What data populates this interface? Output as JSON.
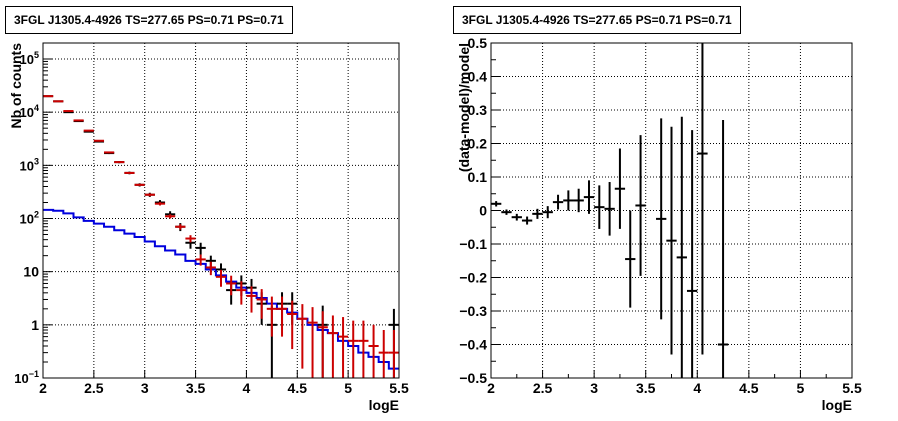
{
  "colors": {
    "data": "#000000",
    "model_counts": "#cc0000",
    "model_bkg": "#0000dd",
    "grid": "#000000"
  },
  "chart_data": [
    {
      "type": "scatter",
      "title": "3FGL J1305.4-4926 TS=277.65 PS=0.71 PS=0.71",
      "xlabel": "logE",
      "ylabel": "Nb of counts",
      "xlim": [
        2,
        5.5
      ],
      "ylim": [
        0.1,
        200000
      ],
      "yscale": "log",
      "grid": true,
      "x_ticks": [
        "2",
        "2.5",
        "3",
        "3.5",
        "4",
        "4.5",
        "5",
        "5.5"
      ],
      "y_ticks": [
        "10^-1",
        "1",
        "10",
        "10^2",
        "10^3",
        "10^4",
        "10^5"
      ],
      "bin_width": 0.1,
      "series": [
        {
          "kind": "data",
          "x": [
            2.05,
            2.15,
            2.25,
            2.35,
            2.45,
            2.55,
            2.65,
            2.75,
            2.85,
            2.95,
            3.05,
            3.15,
            3.25,
            3.35,
            3.45,
            3.55,
            3.65,
            3.75,
            3.85,
            3.95,
            4.05,
            4.15,
            4.25,
            4.35,
            4.45,
            4.55,
            4.65,
            4.75,
            4.85,
            4.95,
            5.05,
            5.15,
            5.25,
            5.35,
            5.45
          ],
          "y": [
            20000,
            16000,
            10000,
            6800,
            4300,
            2800,
            1700,
            1150,
            720,
            430,
            280,
            200,
            120,
            70,
            35,
            28,
            16,
            11,
            4.5,
            6,
            5,
            2.5,
            1,
            2.5,
            2.5,
            0.05,
            0.05,
            1,
            0.05,
            0.05,
            0.05,
            0.05,
            0.05,
            0.05,
            1
          ],
          "y_err_low": [
            300,
            250,
            200,
            150,
            120,
            90,
            70,
            55,
            42,
            30,
            25,
            22,
            17,
            12,
            8,
            7,
            4,
            3.3,
            2.1,
            2.5,
            2.3,
            1.5,
            0.95,
            1.5,
            1.5,
            0,
            0,
            0.95,
            0,
            0,
            0,
            0,
            0,
            0,
            0.95
          ],
          "y_err_high": [
            300,
            250,
            200,
            150,
            120,
            90,
            70,
            55,
            42,
            30,
            25,
            22,
            17,
            12,
            8,
            7,
            4,
            3.3,
            2.1,
            2.5,
            2.3,
            1.6,
            1.3,
            1.6,
            1.6,
            0,
            0,
            1.3,
            0,
            0,
            0,
            0,
            0,
            0,
            1.0
          ]
        },
        {
          "kind": "model_counts",
          "x": [
            2.05,
            2.15,
            2.25,
            2.35,
            2.45,
            2.55,
            2.65,
            2.75,
            2.85,
            2.95,
            3.05,
            3.15,
            3.25,
            3.35,
            3.45,
            3.55,
            3.65,
            3.75,
            3.85,
            3.95,
            4.05,
            4.15,
            4.25,
            4.35,
            4.45,
            4.55,
            4.65,
            4.75,
            4.85,
            4.95,
            5.05,
            5.15,
            5.25,
            5.35,
            5.45
          ],
          "y": [
            20000,
            16000,
            10500,
            7000,
            4500,
            2900,
            1750,
            1150,
            720,
            430,
            280,
            190,
            110,
            70,
            42,
            17,
            12,
            8,
            6,
            4.5,
            3.5,
            3,
            2,
            2,
            1.6,
            1.3,
            1.1,
            0.9,
            0.7,
            0.6,
            0.5,
            0.5,
            0.4,
            0.3,
            0.3
          ],
          "y_err_low": [
            150,
            120,
            100,
            80,
            65,
            50,
            40,
            32,
            26,
            20,
            17,
            14,
            10,
            8,
            6.5,
            4,
            3.4,
            2.8,
            2.4,
            2.1,
            1.8,
            1.7,
            1.4,
            1.4,
            1.25,
            1.15,
            1.05,
            0.9,
            0.7,
            0.6,
            0.5,
            0.5,
            0.4,
            0.3,
            0.3
          ],
          "y_err_high": [
            150,
            120,
            100,
            80,
            65,
            50,
            40,
            32,
            26,
            20,
            17,
            14,
            10,
            8,
            6.5,
            4,
            3.4,
            2.8,
            2.4,
            2.1,
            1.8,
            1.7,
            1.4,
            1.4,
            1.25,
            1.15,
            1.05,
            0.9,
            0.8,
            0.8,
            0.7,
            0.7,
            0.6,
            0.5,
            0.5
          ]
        },
        {
          "kind": "model_bkg",
          "x": [
            2.05,
            2.15,
            2.25,
            2.35,
            2.45,
            2.55,
            2.65,
            2.75,
            2.85,
            2.95,
            3.05,
            3.15,
            3.25,
            3.35,
            3.45,
            3.55,
            3.65,
            3.75,
            3.85,
            3.95,
            4.05,
            4.15,
            4.25,
            4.35,
            4.45,
            4.55,
            4.65,
            4.75,
            4.85,
            4.95,
            5.05,
            5.15,
            5.25,
            5.35,
            5.45
          ],
          "y": [
            145,
            140,
            125,
            105,
            90,
            80,
            70,
            60,
            52,
            45,
            37,
            30,
            25,
            21,
            16,
            14,
            11,
            8.5,
            6.5,
            5,
            4,
            3.2,
            2.5,
            2,
            1.7,
            1.3,
            1,
            0.8,
            0.7,
            0.5,
            0.4,
            0.3,
            0.25,
            0.2,
            0.15
          ]
        }
      ]
    },
    {
      "type": "scatter",
      "title": "3FGL J1305.4-4926 TS=277.65 PS=0.71 PS=0.71",
      "xlabel": "logE",
      "ylabel": "(data-model)/model",
      "xlim": [
        2,
        5.5
      ],
      "ylim": [
        -0.5,
        0.5
      ],
      "grid": true,
      "x_ticks": [
        "2",
        "2.5",
        "3",
        "3.5",
        "4",
        "4.5",
        "5",
        "5.5"
      ],
      "y_ticks": [
        "-0.5",
        "-0.4",
        "-0.3",
        "-0.2",
        "-0.1",
        "0",
        "0.1",
        "0.2",
        "0.3",
        "0.4",
        "0.5"
      ],
      "bin_width": 0.1,
      "series": [
        {
          "kind": "residual",
          "x": [
            2.05,
            2.15,
            2.25,
            2.35,
            2.45,
            2.55,
            2.65,
            2.75,
            2.85,
            2.95,
            3.05,
            3.15,
            3.25,
            3.35,
            3.45,
            3.65,
            3.75,
            3.85,
            3.95,
            4.05,
            4.25
          ],
          "y": [
            0.02,
            -0.005,
            -0.02,
            -0.03,
            -0.01,
            -0.005,
            0.025,
            0.03,
            0.03,
            0.04,
            0.01,
            0.005,
            0.065,
            -0.145,
            0.015,
            -0.025,
            -0.09,
            -0.14,
            -0.24,
            0.17,
            -0.4
          ],
          "y_err": [
            0.008,
            0.008,
            0.01,
            0.012,
            0.015,
            0.018,
            0.022,
            0.03,
            0.035,
            0.05,
            0.065,
            0.08,
            0.12,
            0.145,
            0.21,
            0.3,
            0.34,
            0.42,
            0.48,
            0.6,
            0.67
          ]
        }
      ]
    }
  ]
}
